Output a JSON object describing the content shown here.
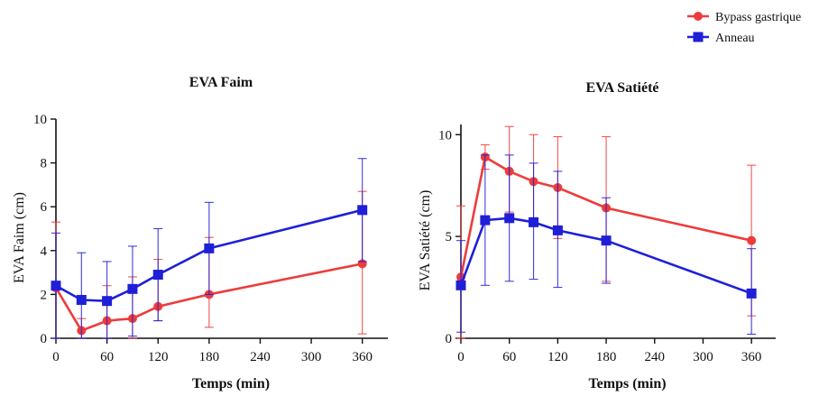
{
  "legend": {
    "position": "top-right",
    "entries": [
      {
        "label": "Bypass gastrique",
        "color": "#ee3b3b",
        "marker": "circle"
      },
      {
        "label": "Anneau",
        "color": "#1f1fd8",
        "marker": "square"
      }
    ]
  },
  "chart_data": [
    {
      "type": "line",
      "title": "EVA Faim",
      "xlabel": "Temps (min)",
      "ylabel": "EVA Faim (cm)",
      "xlim": [
        0,
        390
      ],
      "ylim": [
        0,
        10
      ],
      "xticks": [
        0,
        60,
        120,
        180,
        240,
        300,
        360
      ],
      "yticks": [
        0,
        2,
        4,
        6,
        8,
        10
      ],
      "grid": false,
      "error_bars": true,
      "series": [
        {
          "name": "Bypass gastrique",
          "color": "#ee3b3b",
          "marker": "circle",
          "x": [
            0,
            30,
            60,
            90,
            120,
            180,
            360
          ],
          "y": [
            2.3,
            0.35,
            0.8,
            0.9,
            1.45,
            2.0,
            3.4
          ],
          "err_low": [
            0,
            0,
            0,
            0,
            0.8,
            0.5,
            0.2
          ],
          "err_high": [
            5.3,
            0.9,
            2.4,
            2.8,
            3.6,
            4.6,
            6.7
          ]
        },
        {
          "name": "Anneau",
          "color": "#1f1fd8",
          "marker": "square",
          "x": [
            0,
            30,
            60,
            90,
            120,
            180,
            360
          ],
          "y": [
            2.4,
            1.75,
            1.7,
            2.25,
            2.9,
            4.1,
            5.85
          ],
          "err_low": [
            0,
            0,
            0,
            0.1,
            0.8,
            2.0,
            3.5
          ],
          "err_high": [
            4.8,
            3.9,
            3.5,
            4.2,
            5.0,
            6.2,
            8.2
          ]
        }
      ]
    },
    {
      "type": "line",
      "title": "EVA Satiété",
      "xlabel": "Temps (min)",
      "ylabel": "EVA Satiété (cm)",
      "xlim": [
        0,
        390
      ],
      "ylim": [
        0,
        10.5
      ],
      "xticks": [
        0,
        60,
        120,
        180,
        240,
        300,
        360
      ],
      "yticks": [
        0,
        5,
        10
      ],
      "grid": false,
      "error_bars": true,
      "series": [
        {
          "name": "Bypass gastrique",
          "color": "#ee3b3b",
          "marker": "circle",
          "x": [
            0,
            30,
            60,
            90,
            120,
            180,
            360
          ],
          "y": [
            3.0,
            8.9,
            8.2,
            7.7,
            7.4,
            6.4,
            4.8
          ],
          "err_low": [
            0,
            8.3,
            6.2,
            5.5,
            4.9,
            2.8,
            1.1
          ],
          "err_high": [
            6.5,
            9.5,
            10.4,
            10.0,
            9.9,
            9.9,
            8.5
          ]
        },
        {
          "name": "Anneau",
          "color": "#1f1fd8",
          "marker": "square",
          "x": [
            0,
            30,
            60,
            90,
            120,
            180,
            360
          ],
          "y": [
            2.6,
            5.8,
            5.9,
            5.7,
            5.3,
            4.8,
            2.2
          ],
          "err_low": [
            0.3,
            2.6,
            2.8,
            2.9,
            2.5,
            2.7,
            0.2
          ],
          "err_high": [
            4.8,
            9.0,
            9.0,
            8.6,
            8.2,
            6.9,
            4.4
          ]
        }
      ]
    }
  ]
}
